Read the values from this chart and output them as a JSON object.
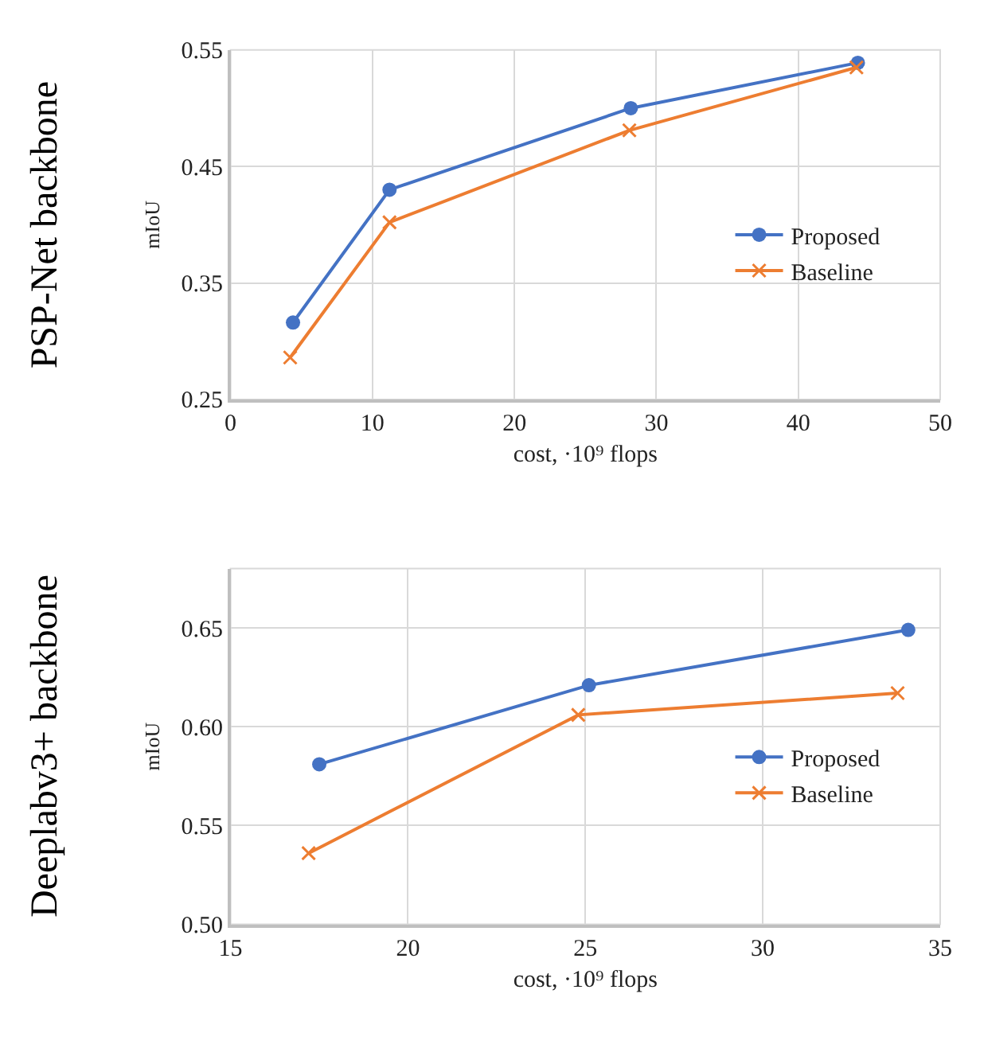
{
  "chart_data": [
    {
      "type": "line",
      "title": "PSP-Net backbone",
      "xlabel": "cost, ·10⁹ flops",
      "ylabel": "mIoU",
      "xlim": [
        0,
        50
      ],
      "xticks": [
        0,
        10,
        20,
        30,
        40,
        50
      ],
      "ylim": [
        0.25,
        0.55
      ],
      "yticks": [
        0.25,
        0.35,
        0.45,
        0.55
      ],
      "grid": true,
      "legend": "right",
      "line_style": "solid",
      "series": [
        {
          "name": "Proposed",
          "color": "#4472c4",
          "marker": "circle",
          "x": [
            4.4,
            11.2,
            28.2,
            44.2
          ],
          "values": [
            0.316,
            0.43,
            0.5,
            0.539
          ]
        },
        {
          "name": "Baseline",
          "color": "#ed7d31",
          "marker": "cross",
          "x": [
            4.2,
            11.2,
            28.1,
            44.1
          ],
          "values": [
            0.286,
            0.402,
            0.481,
            0.535
          ]
        }
      ]
    },
    {
      "type": "line",
      "title": "Deeplabv3+ backbone",
      "xlabel": "cost, ·10⁹ flops",
      "ylabel": "mIoU",
      "xlim": [
        15,
        35
      ],
      "xticks": [
        15,
        20,
        25,
        30,
        35
      ],
      "ylim": [
        0.5,
        0.68
      ],
      "yticks": [
        {
          "value": 0.5,
          "label": "0.50"
        },
        0.55,
        {
          "value": 0.6,
          "label": "0.60"
        },
        0.65
      ],
      "grid": true,
      "legend": "right",
      "line_style": "solid",
      "series": [
        {
          "name": "Proposed",
          "color": "#4472c4",
          "marker": "circle",
          "x": [
            17.5,
            25.1,
            34.1
          ],
          "values": [
            0.581,
            0.621,
            0.649
          ]
        },
        {
          "name": "Baseline",
          "color": "#ed7d31",
          "marker": "cross",
          "x": [
            17.2,
            24.8,
            33.8
          ],
          "values": [
            0.536,
            0.606,
            0.617
          ]
        }
      ]
    }
  ]
}
